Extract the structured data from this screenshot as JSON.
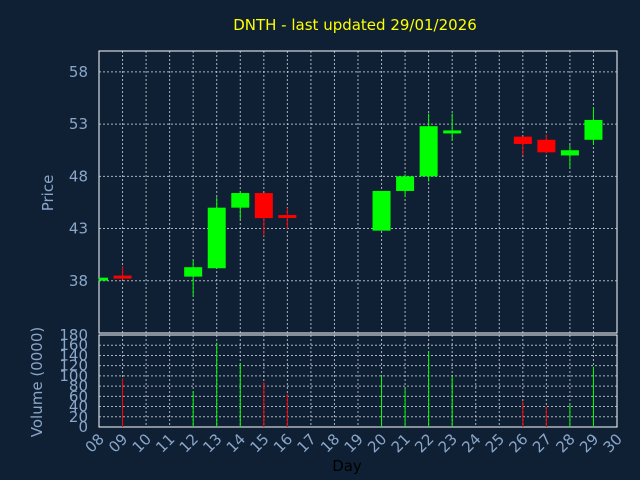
{
  "chart_data": {
    "type": "candlestick",
    "title": "DNTH - last updated 29/01/2026",
    "ylabel": "Price",
    "volume_label": "Volume (0000)",
    "xlabel": "Day",
    "ylim": [
      33,
      60
    ],
    "yticks": [
      38,
      43,
      48,
      53,
      58
    ],
    "volume_ylim": [
      0,
      180
    ],
    "volume_yticks": [
      0,
      20,
      40,
      60,
      80,
      100,
      120,
      140,
      160,
      180
    ],
    "xlim": [
      8,
      30
    ],
    "xticks": [
      "08",
      "09",
      "10",
      "11",
      "12",
      "13",
      "14",
      "15",
      "16",
      "17",
      "18",
      "19",
      "20",
      "21",
      "22",
      "23",
      "24",
      "25",
      "26",
      "27",
      "28",
      "29",
      "30"
    ],
    "colors": {
      "up": "#00ff00",
      "down": "#ff0000"
    },
    "candles": [
      {
        "day": 8,
        "open": 38.1,
        "high": 38.2,
        "low": 38.0,
        "close": 38.2,
        "volume": 0
      },
      {
        "day": 9,
        "open": 38.4,
        "high": 39.4,
        "low": 38.1,
        "close": 38.2,
        "volume": 95
      },
      {
        "day": 12,
        "open": 38.4,
        "high": 40.0,
        "low": 36.5,
        "close": 39.3,
        "volume": 70
      },
      {
        "day": 13,
        "open": 39.2,
        "high": 46.0,
        "low": 39.2,
        "close": 45.0,
        "volume": 165
      },
      {
        "day": 14,
        "open": 45.0,
        "high": 46.6,
        "low": 43.9,
        "close": 46.4,
        "volume": 125
      },
      {
        "day": 15,
        "open": 46.4,
        "high": 46.4,
        "low": 42.3,
        "close": 44.0,
        "volume": 88
      },
      {
        "day": 16,
        "open": 44.2,
        "high": 45.0,
        "low": 43.0,
        "close": 44.1,
        "volume": 65
      },
      {
        "day": 20,
        "open": 42.8,
        "high": 46.6,
        "low": 42.8,
        "close": 46.6,
        "volume": 100
      },
      {
        "day": 21,
        "open": 46.6,
        "high": 48.2,
        "low": 46.0,
        "close": 48.0,
        "volume": 75
      },
      {
        "day": 22,
        "open": 48.0,
        "high": 54.0,
        "low": 47.5,
        "close": 52.8,
        "volume": 148
      },
      {
        "day": 23,
        "open": 52.2,
        "high": 54.0,
        "low": 51.4,
        "close": 52.3,
        "volume": 100
      },
      {
        "day": 26,
        "open": 51.8,
        "high": 51.8,
        "low": 50.0,
        "close": 51.1,
        "volume": 50
      },
      {
        "day": 27,
        "open": 51.5,
        "high": 52.0,
        "low": 50.2,
        "close": 50.3,
        "volume": 40
      },
      {
        "day": 28,
        "open": 50.0,
        "high": 51.0,
        "low": 48.8,
        "close": 50.5,
        "volume": 45
      },
      {
        "day": 29,
        "open": 51.5,
        "high": 54.6,
        "low": 51.0,
        "close": 53.4,
        "volume": 118
      }
    ]
  }
}
